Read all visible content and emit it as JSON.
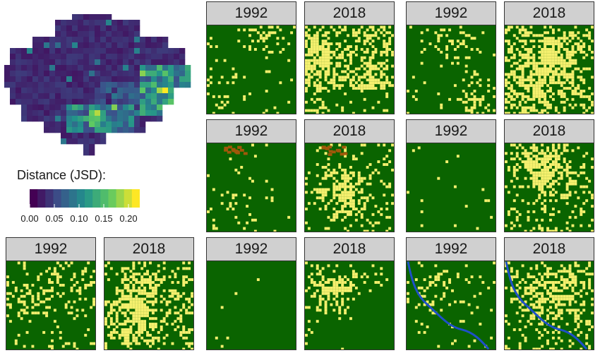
{
  "legend": {
    "title": "Distance (JSD):",
    "ticks": [
      "0.00",
      "0.05",
      "0.10",
      "0.15",
      "0.20"
    ],
    "range": [
      0,
      0.22
    ],
    "colors": [
      "#440154",
      "#3b528b",
      "#21918c",
      "#5ec962",
      "#fde725"
    ]
  },
  "landcover_colors": {
    "forest": "#0a6400",
    "cleared": "#f5f06e",
    "bare": "#a0580a",
    "water": "#1e50c8"
  },
  "panels": [
    {
      "label": "1992"
    },
    {
      "label": "2018"
    },
    {
      "label": "1992"
    },
    {
      "label": "2018"
    },
    {
      "label": "1992"
    },
    {
      "label": "2018"
    },
    {
      "label": "1992"
    },
    {
      "label": "2018"
    },
    {
      "label": "1992"
    },
    {
      "label": "2018"
    },
    {
      "label": "1992"
    },
    {
      "label": "2018"
    },
    {
      "label": "1992"
    },
    {
      "label": "2018"
    }
  ]
}
